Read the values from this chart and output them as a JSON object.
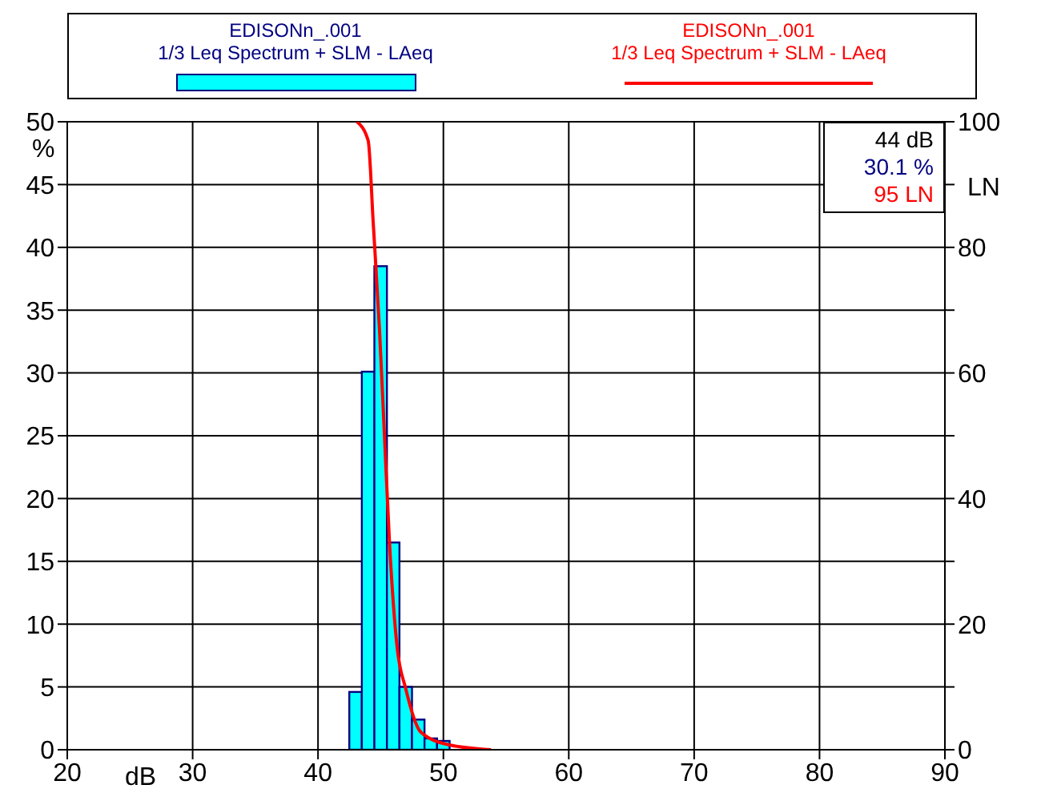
{
  "chart_data": {
    "type": "histogram",
    "xlabel": "dB",
    "ylabel": "%",
    "y2label": "LN",
    "xlim": [
      20,
      90
    ],
    "xticks": [
      20,
      30,
      40,
      50,
      60,
      70,
      80,
      90
    ],
    "ylim": [
      0,
      50
    ],
    "yticks": [
      0,
      5,
      10,
      15,
      20,
      25,
      30,
      35,
      40,
      45,
      50
    ],
    "y2lim": [
      0,
      100
    ],
    "y2ticks": [
      0,
      {
        "value": 10,
        "label": null
      },
      20,
      {
        "value": 30,
        "label": null
      },
      40,
      {
        "value": 50,
        "label": null
      },
      60,
      {
        "value": 70,
        "label": null
      },
      80,
      {
        "value": 90,
        "label": null
      },
      100
    ],
    "grid": true,
    "legend": "top",
    "series": [
      {
        "name": "EDISONn_.001\n1/3 Leq Spectrum + SLM - LAeq",
        "color": "#00ffff",
        "bins": [
          42.5,
          43.5,
          44.5,
          45.5,
          46.5,
          47.5,
          48.5,
          49.5,
          50.5,
          51.5,
          52.5
        ],
        "values": [
          4.6,
          30.1,
          38.5,
          16.5,
          5.0,
          2.4,
          0.9,
          0.7,
          null,
          null
        ]
      },
      {
        "name": "EDISONn_.001\n1/3 Leq Spectrum + SLM - LAeq",
        "type": "line",
        "axis": "y2",
        "color": "#ff0000",
        "x": [
          43.1,
          44.0,
          44.4,
          44.9,
          45.3,
          45.7,
          46.3,
          47.0,
          48.2,
          50.4,
          53.8
        ],
        "values": [
          100,
          97,
          84,
          67,
          50,
          33,
          16.5,
          9.7,
          2.8,
          0.8,
          0
        ]
      }
    ],
    "annotations": [
      "44 dB",
      "30.1 %",
      "95 LN"
    ]
  }
}
